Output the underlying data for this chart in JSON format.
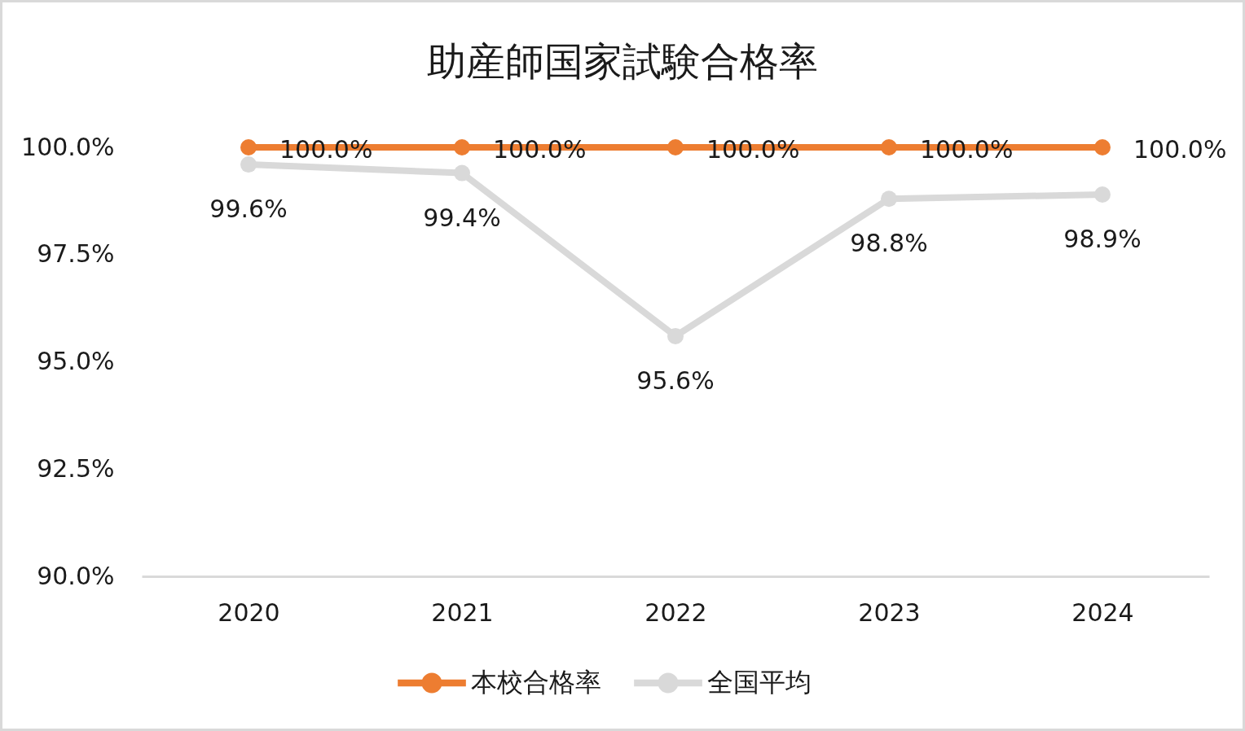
{
  "chart_data": {
    "type": "line",
    "title": "助産師国家試験合格率",
    "categories": [
      "2020",
      "2021",
      "2022",
      "2023",
      "2024"
    ],
    "series": [
      {
        "name": "本校合格率",
        "color": "#ed7d31",
        "values": [
          100,
          100,
          100,
          100,
          100
        ],
        "value_labels": [
          "100.0%",
          "100.0%",
          "100.0%",
          "100.0%",
          "100.0%"
        ]
      },
      {
        "name": "全国平均",
        "color": "#d9d9d9",
        "values": [
          99.6,
          99.4,
          95.6,
          98.8,
          98.9
        ],
        "value_labels": [
          "99.6%",
          "99.4%",
          "95.6%",
          "98.8%",
          "98.9%"
        ]
      }
    ],
    "ylim": [
      90,
      100
    ],
    "yticks": [
      {
        "value": 90,
        "label": "90.0%"
      },
      {
        "value": 92.5,
        "label": "92.5%"
      },
      {
        "value": 95,
        "label": "95.0%"
      },
      {
        "value": 97.5,
        "label": "97.5%"
      },
      {
        "value": 100,
        "label": "100.0%"
      }
    ],
    "grid": false,
    "legend": "bottom",
    "marker": "circle",
    "line_style": "solid"
  }
}
